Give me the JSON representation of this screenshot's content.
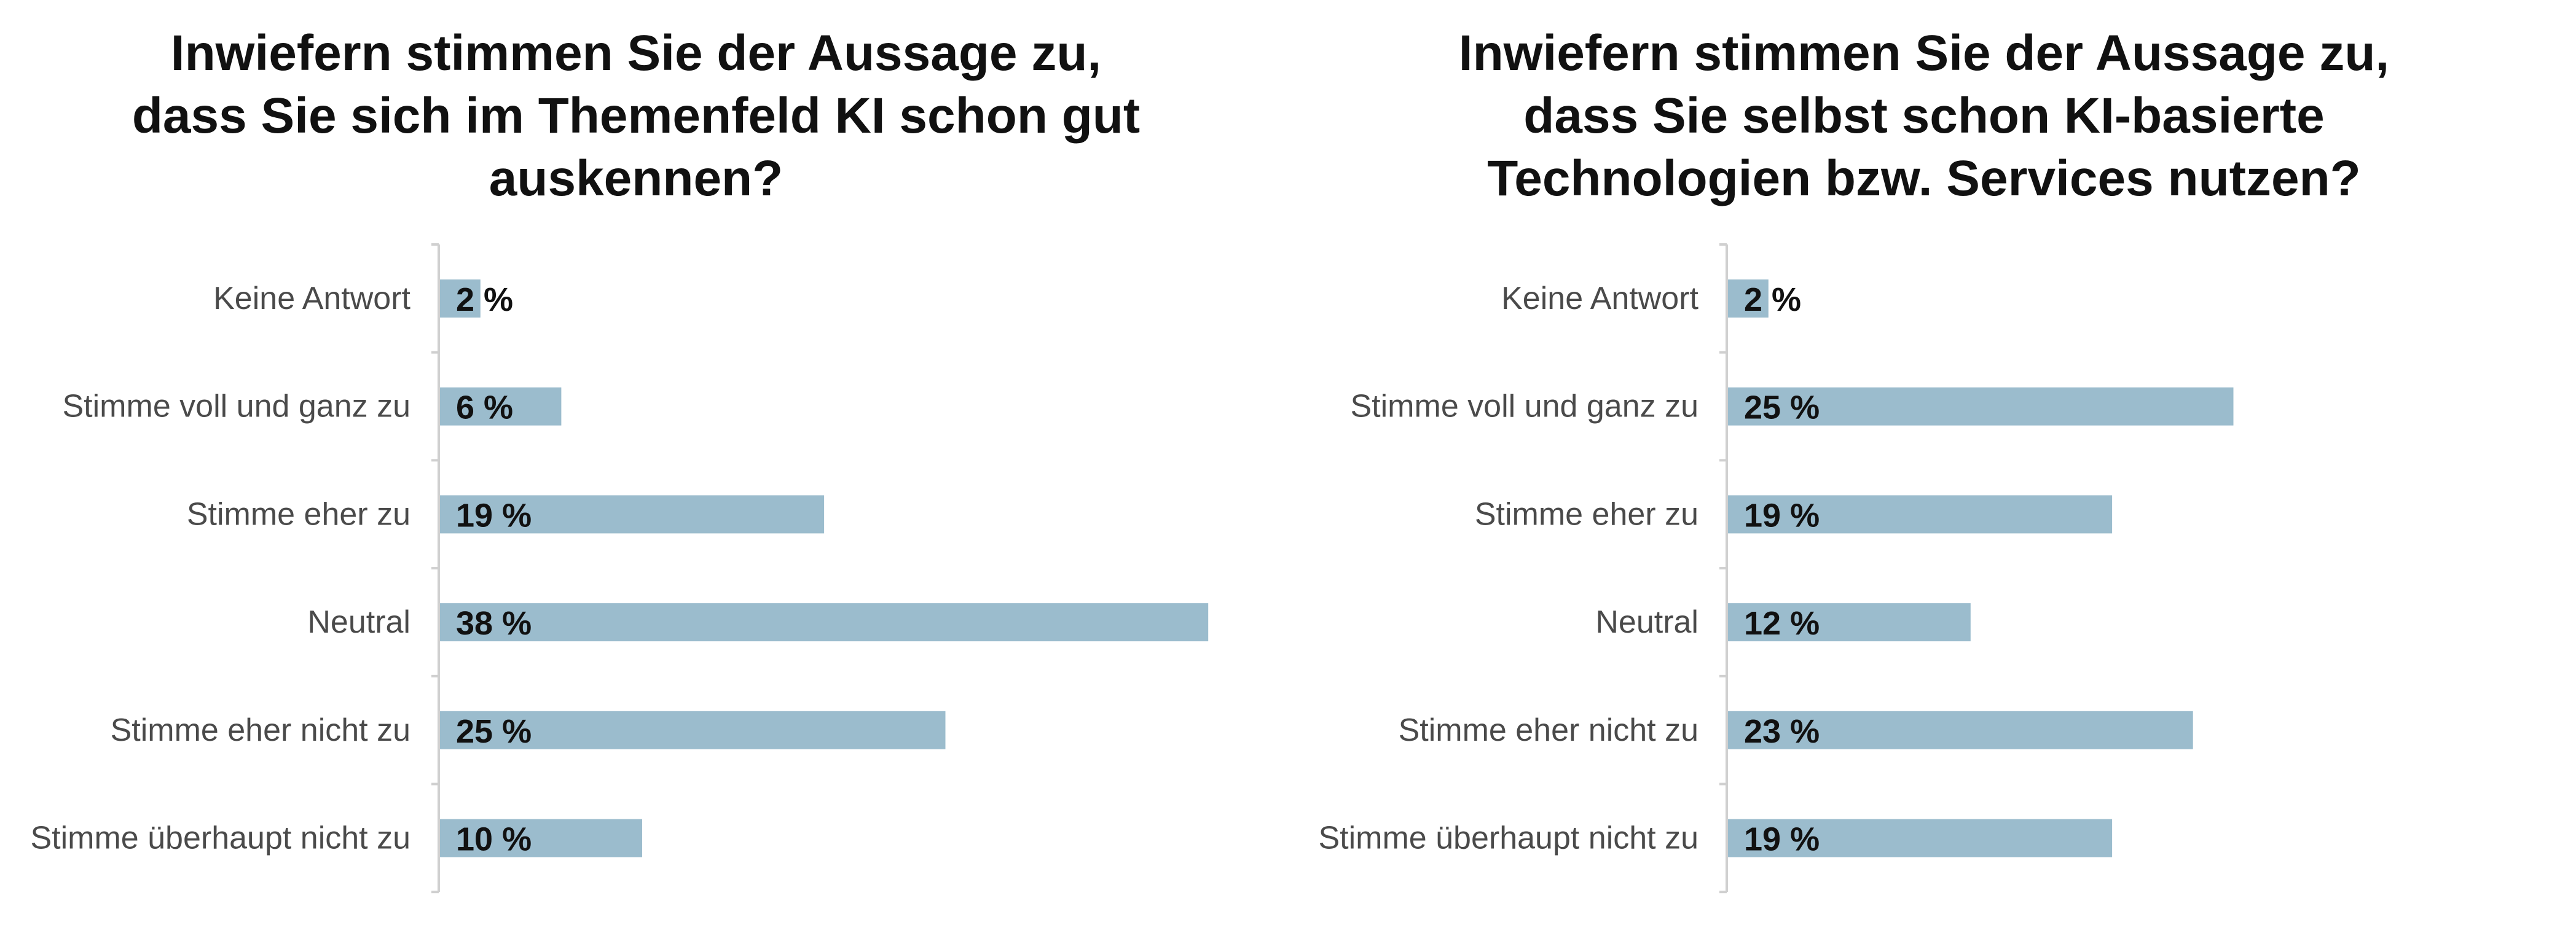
{
  "colors": {
    "bar": "#9bbccd",
    "axis": "#d0d0d0",
    "text": "#111111",
    "category_text": "#4a4a4a"
  },
  "chart_data": [
    {
      "type": "bar",
      "orientation": "horizontal",
      "title_lines": [
        "Inwiefern stimmen Sie der Aussage zu,",
        "dass Sie sich im Themenfeld KI schon gut",
        "auskennen?"
      ],
      "categories": [
        "Keine Antwort",
        "Stimme voll und ganz zu",
        "Stimme eher zu",
        "Neutral",
        "Stimme eher nicht zu",
        "Stimme überhaupt nicht zu"
      ],
      "values": [
        2,
        6,
        19,
        38,
        25,
        10
      ],
      "value_labels": [
        "2 %",
        "6 %",
        "19 %",
        "38 %",
        "25 %",
        "10 %"
      ],
      "unit": "%",
      "xlim": [
        0,
        38
      ],
      "grid": false,
      "legend": "none"
    },
    {
      "type": "bar",
      "orientation": "horizontal",
      "title_lines": [
        "Inwiefern stimmen Sie der Aussage zu,",
        "dass Sie selbst schon KI-basierte",
        "Technologien bzw. Services nutzen?"
      ],
      "categories": [
        "Keine Antwort",
        "Stimme voll und ganz zu",
        "Stimme eher zu",
        "Neutral",
        "Stimme eher nicht zu",
        "Stimme überhaupt nicht zu"
      ],
      "values": [
        2,
        25,
        19,
        12,
        23,
        19
      ],
      "value_labels": [
        "2 %",
        "25 %",
        "19 %",
        "12 %",
        "23 %",
        "19 %"
      ],
      "unit": "%",
      "xlim": [
        0,
        25
      ],
      "grid": false,
      "legend": "none"
    }
  ]
}
